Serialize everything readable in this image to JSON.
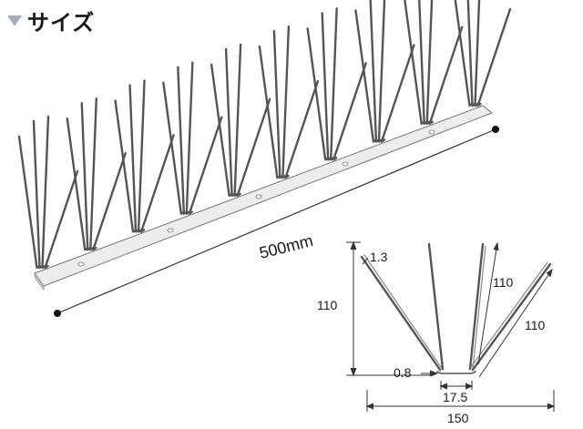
{
  "header": {
    "title": "サイズ",
    "icon": "triangle-down-icon"
  },
  "dimensions": {
    "length": "500mm",
    "height": "110",
    "wire_diameter": "1.3",
    "spike_length_1": "110",
    "spike_length_2": "110",
    "base_thickness": "0.8",
    "base_width": "17.5",
    "total_width": "150"
  },
  "colors": {
    "wire": "#555555",
    "base_top": "#e8e8e8",
    "base_side": "#c8c8c8",
    "triangle": "#a7aeb8"
  }
}
